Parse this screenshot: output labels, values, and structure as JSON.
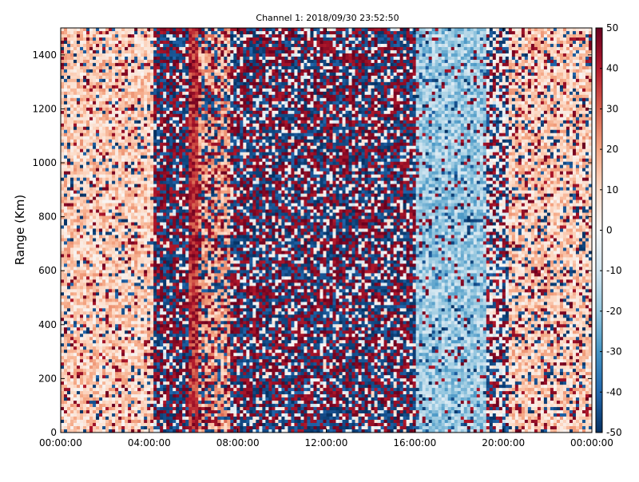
{
  "chart_data": {
    "type": "heatmap",
    "title": "Channel 1: 2018/09/30 23:52:50",
    "xlabel": "",
    "ylabel": "Range (Km)",
    "x_ticks": [
      "00:00:00",
      "04:00:00",
      "08:00:00",
      "12:00:00",
      "16:00:00",
      "20:00:00",
      "00:00:00"
    ],
    "x_range": [
      0,
      24
    ],
    "x_unit": "hours",
    "y_ticks": [
      0,
      200,
      400,
      600,
      800,
      1000,
      1200,
      1400
    ],
    "ylim": [
      0,
      1500
    ],
    "colorbar": {
      "ticks": [
        -50,
        -40,
        -30,
        -20,
        -10,
        0,
        10,
        20,
        30,
        40,
        50
      ],
      "range": [
        -50,
        50
      ],
      "colormap": "RdBu_r",
      "colors": {
        "low": "#053061",
        "mid": "#f7f7f7",
        "high": "#67001f"
      }
    },
    "regions": [
      {
        "hours": [
          0.0,
          4.2
        ],
        "pattern": "warm background with cool streaks",
        "mean": 12,
        "noise": 0.16
      },
      {
        "hours": [
          4.2,
          5.8
        ],
        "pattern": "random saturated noise",
        "mean": 0,
        "noise": 0.85
      },
      {
        "hours": [
          5.8,
          6.2
        ],
        "pattern": "strong positive band",
        "mean": 38,
        "noise": 0.05
      },
      {
        "hours": [
          6.2,
          7.7
        ],
        "pattern": "positive band with noise",
        "mean": 18,
        "noise": 0.45
      },
      {
        "hours": [
          7.7,
          16.1
        ],
        "pattern": "random saturated noise",
        "mean": 0,
        "noise": 0.8
      },
      {
        "hours": [
          16.1,
          19.2
        ],
        "pattern": "negative band",
        "mean": -18,
        "noise": 0.14
      },
      {
        "hours": [
          19.2,
          20.3
        ],
        "pattern": "mixed noise",
        "mean": 0,
        "noise": 0.55
      },
      {
        "hours": [
          20.3,
          24.0
        ],
        "pattern": "warm background",
        "mean": 12,
        "noise": 0.22
      }
    ],
    "grid": false,
    "legend": "colorbar right"
  }
}
